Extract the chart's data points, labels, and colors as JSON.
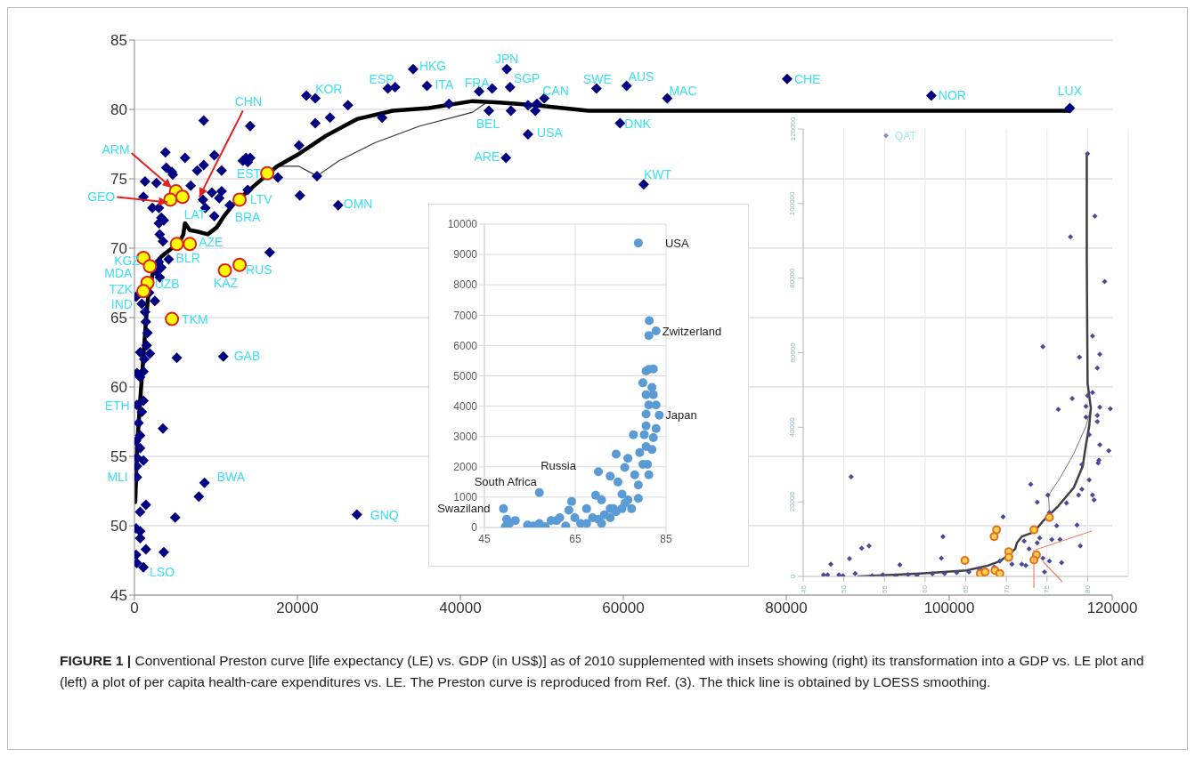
{
  "chart_data": [
    {
      "type": "scatter",
      "marker": "diamond",
      "xlim": [
        0,
        120000
      ],
      "ylim": [
        45,
        85
      ],
      "xticks": [
        0,
        20000,
        40000,
        60000,
        80000,
        100000,
        120000
      ],
      "yticks": [
        45,
        50,
        55,
        60,
        65,
        70,
        75,
        80,
        85
      ],
      "grid": "y",
      "series": [
        {
          "color": "#000080",
          "x": [
            34200,
            35900,
            42300,
            43900,
            45700,
            46100,
            50300,
            49400,
            43500,
            46200,
            38600,
            48300,
            49200,
            48300,
            45600,
            56700,
            60400,
            65400,
            59600,
            62500,
            80100,
            97800,
            114800,
            31100,
            32000,
            22200,
            21100,
            26200,
            24000,
            22200,
            30400,
            20200,
            22400,
            20300,
            25000,
            16600,
            8500,
            14200,
            13700,
            14200,
            13300,
            13900,
            17600,
            13900,
            11700,
            9800,
            10700,
            8500,
            7700,
            6200,
            3800,
            3900,
            4600,
            4700,
            1300,
            2700,
            6900,
            9500,
            10700,
            10400,
            8400,
            8700,
            9800,
            1100,
            2200,
            3000,
            3300,
            3600,
            3000,
            3100,
            3500,
            4200,
            3000,
            3300,
            2700,
            3100,
            200,
            2500,
            1300,
            1400,
            1600,
            1800,
            900,
            1500,
            1200,
            10900,
            5200,
            700,
            1900,
            300,
            1100,
            700,
            300,
            1100,
            900,
            500,
            3500,
            700,
            200,
            700,
            300,
            1100,
            300,
            300,
            8600,
            7900,
            1400,
            700,
            5000,
            27300,
            200,
            700,
            700,
            1400,
            3600,
            200,
            300,
            1100
          ],
          "values": [
            82.9,
            81.7,
            81.3,
            81.5,
            82.9,
            81.6,
            80.8,
            80.4,
            79.9,
            79.9,
            80.4,
            80.3,
            79.9,
            78.2,
            76.5,
            81.5,
            81.7,
            80.8,
            79.0,
            74.6,
            82.2,
            81.0,
            80.1,
            81.5,
            81.6,
            80.8,
            81.0,
            80.3,
            79.4,
            79.0,
            79.4,
            77.4,
            75.2,
            73.8,
            73.1,
            69.7,
            79.2,
            78.8,
            76.5,
            76.5,
            76.3,
            76.2,
            75.1,
            74.2,
            73.1,
            76.7,
            75.6,
            76.0,
            75.6,
            76.5,
            76.9,
            75.8,
            75.5,
            75.3,
            74.8,
            74.7,
            74.5,
            74.0,
            74.1,
            73.6,
            73.5,
            72.9,
            72.3,
            73.7,
            72.9,
            72.9,
            72.2,
            72.0,
            71.8,
            71.0,
            70.5,
            69.2,
            69.0,
            68.6,
            68.3,
            67.9,
            66.5,
            66.2,
            65.4,
            64.7,
            63.9,
            66.8,
            66.0,
            63.0,
            62.0,
            62.2,
            62.1,
            62.5,
            62.4,
            61.0,
            61.1,
            60.7,
            58.7,
            59.0,
            58.2,
            57.4,
            57.0,
            56.5,
            56.1,
            55.6,
            54.9,
            54.7,
            54.3,
            53.5,
            53.1,
            52.1,
            51.5,
            51.0,
            50.6,
            50.8,
            49.8,
            49.6,
            49.1,
            48.3,
            48.1,
            47.9,
            47.3,
            47.0
          ]
        },
        {
          "type": "line",
          "color": "#333333",
          "marker": "none",
          "x": [
            17500,
            20200,
            22400,
            25100,
            29500,
            35000,
            41500,
            43200
          ],
          "values": [
            75.9,
            75.9,
            75.2,
            76.3,
            77.6,
            78.8,
            79.8,
            80.5
          ]
        },
        {
          "type": "line",
          "color": "#000000",
          "marker": "none",
          "x": [
            100,
            330,
            770,
            1100,
            1400,
            1700,
            2400,
            3300,
            4400,
            5500,
            6000,
            6200,
            6800,
            7700,
            9000,
            10100,
            11100,
            12200,
            13700,
            15300,
            17500,
            20200,
            23500,
            27300,
            31700,
            36100,
            41500,
            44800,
            49200,
            55700,
            114800
          ],
          "values": [
            51.7,
            55.8,
            59.6,
            62.2,
            64.7,
            66.7,
            68.6,
            69.4,
            69.9,
            70.4,
            71.0,
            71.8,
            71.3,
            71.2,
            71.0,
            71.5,
            72.4,
            73.2,
            74.0,
            74.8,
            75.9,
            76.8,
            78.1,
            79.3,
            79.9,
            80.1,
            80.6,
            80.5,
            80.3,
            79.9,
            79.9
          ]
        },
        {
          "color": "#ffff00",
          "marker": "circle",
          "x": [
            5100,
            4400,
            5900,
            16300,
            12900,
            6800,
            5200,
            1100,
            1900,
            1600,
            1100,
            4600,
            11100,
            12900
          ],
          "values": [
            74.1,
            73.5,
            73.7,
            75.4,
            73.5,
            70.3,
            70.3,
            69.3,
            68.7,
            67.5,
            66.9,
            64.9,
            68.4,
            68.8
          ]
        }
      ],
      "annotations": [
        {
          "text": "CHN",
          "x": 8400,
          "y": 73.5
        },
        {
          "text": "ARM",
          "x": 5100,
          "y": 74.1
        },
        {
          "text": "GEO",
          "x": 4400,
          "y": 73.5
        },
        {
          "text": "EST",
          "x": 16300,
          "y": 75.4
        },
        {
          "text": "LTV",
          "x": 12900,
          "y": 73.5
        },
        {
          "text": "LAT",
          "x": 5900,
          "y": 73.7
        },
        {
          "text": "BRA",
          "x": 11700,
          "y": 73.1
        },
        {
          "text": "AZE",
          "x": 6800,
          "y": 70.3
        },
        {
          "text": "BLR",
          "x": 5200,
          "y": 70.3
        },
        {
          "text": "KGZ",
          "x": 1100,
          "y": 69.3
        },
        {
          "text": "MDA",
          "x": 1900,
          "y": 68.7
        },
        {
          "text": "UZB",
          "x": 1600,
          "y": 67.5
        },
        {
          "text": "TZK",
          "x": 1100,
          "y": 66.9
        },
        {
          "text": "IND",
          "x": 1300,
          "y": 65.4
        },
        {
          "text": "TKM",
          "x": 4600,
          "y": 64.9
        },
        {
          "text": "KAZ",
          "x": 11100,
          "y": 68.4
        },
        {
          "text": "RUS",
          "x": 12900,
          "y": 68.8
        },
        {
          "text": "OMN",
          "x": 25000,
          "y": 73.1
        },
        {
          "text": "KOR",
          "x": 22200,
          "y": 80.8
        },
        {
          "text": "ESP",
          "x": 31100,
          "y": 81.5
        },
        {
          "text": "HKG",
          "x": 34200,
          "y": 82.9
        },
        {
          "text": "ITA",
          "x": 35900,
          "y": 81.7
        },
        {
          "text": "FRA",
          "x": 43900,
          "y": 81.5
        },
        {
          "text": "JPN",
          "x": 45700,
          "y": 82.9
        },
        {
          "text": "SGP",
          "x": 46100,
          "y": 81.6
        },
        {
          "text": "CAN",
          "x": 50300,
          "y": 80.8
        },
        {
          "text": "BEL",
          "x": 43500,
          "y": 79.9
        },
        {
          "text": "USA",
          "x": 48300,
          "y": 78.2
        },
        {
          "text": "ARE",
          "x": 45600,
          "y": 76.5
        },
        {
          "text": "SWE",
          "x": 56700,
          "y": 81.5
        },
        {
          "text": "AUS",
          "x": 60400,
          "y": 81.7
        },
        {
          "text": "MAC",
          "x": 65400,
          "y": 80.8
        },
        {
          "text": "DNK",
          "x": 59600,
          "y": 79.0
        },
        {
          "text": "KWT",
          "x": 62500,
          "y": 74.6
        },
        {
          "text": "CHE",
          "x": 80100,
          "y": 82.2
        },
        {
          "text": "NOR",
          "x": 97800,
          "y": 81.0
        },
        {
          "text": "LUX",
          "x": 114800,
          "y": 80.1
        },
        {
          "text": "GAB",
          "x": 10900,
          "y": 62.2
        },
        {
          "text": "ETH",
          "x": 300,
          "y": 58.7
        },
        {
          "text": "MLI",
          "x": 300,
          "y": 53.5
        },
        {
          "text": "BWA",
          "x": 8600,
          "y": 53.1
        },
        {
          "text": "GNQ",
          "x": 27300,
          "y": 50.8
        },
        {
          "text": "LSO",
          "x": 1100,
          "y": 47.0
        },
        "FIGURE 1 |",
        "Conventional Preston curve [life expectancy (LE) vs. GDP (in US$)] as of 2010 supplemented with insets showing (right) its transformation into a GDP vs. LE plot and (left) a plot of per capita health-care expenditures vs. LE. The Preston curve is reproduced from Ref. (3). The thick line is obtained by LOESS smoothing."
      ]
    },
    {
      "type": "scatter",
      "marker": "circle",
      "xlim": [
        45,
        85
      ],
      "ylim": [
        0,
        10000
      ],
      "xticks": [
        45,
        65,
        85
      ],
      "yticks": [
        0,
        1000,
        2000,
        3000,
        4000,
        5000,
        6000,
        7000,
        8000,
        9000,
        10000
      ],
      "grid": true,
      "series": [
        {
          "color": "#5b9bd5",
          "x": [
            78.9,
            81.3,
            81.2,
            82.8,
            80.6,
            81.2,
            82.2,
            79.9,
            80.6,
            81.9,
            82.2,
            80.6,
            81.2,
            82.8,
            83.5,
            80.6,
            82.8,
            82.2,
            80.2,
            77.8,
            81.9,
            79.2,
            80.6,
            81.2,
            78.9,
            78.9,
            77.4,
            79.9,
            80.9,
            78.1,
            76.6,
            74.0,
            75.9,
            74.4,
            75.3,
            73.4,
            72.7,
            70.1,
            69.5,
            70.8,
            67.5,
            72.7,
            71.4,
            68.8,
            64.9,
            64.2,
            63.6,
            61.6,
            59.7,
            57.1,
            54.5,
            57.1,
            60.9,
            66.2,
            70.8,
            74.0,
            76.6,
            75.3,
            49.2,
            49.9,
            49.6,
            51.8,
            50.5,
            55.8,
            58.4,
            62.9,
            67.5,
            70.1,
            72.7,
            76.0
          ],
          "values": [
            9380,
            6820,
            6330,
            6480,
            5160,
            5210,
            5230,
            4770,
            4380,
            4620,
            4380,
            3740,
            4040,
            4040,
            3700,
            3350,
            3260,
            2960,
            3060,
            3060,
            2570,
            2470,
            2670,
            1740,
            1400,
            960,
            620,
            2080,
            2080,
            1740,
            2280,
            2420,
            1980,
            1500,
            1100,
            620,
            1690,
            1840,
            1060,
            910,
            620,
            320,
            420,
            320,
            320,
            860,
            570,
            320,
            230,
            130,
            80,
            1150,
            230,
            130,
            130,
            520,
            910,
            620,
            620,
            270,
            30,
            230,
            130,
            50,
            30,
            50,
            130,
            270,
            620,
            810
          ]
        }
      ],
      "annotations": [
        {
          "text": "USA",
          "x": 78.9,
          "y": 9380
        },
        {
          "text": "Zwitzerland",
          "x": 82.8,
          "y": 6480
        },
        {
          "text": "Japan",
          "x": 83.5,
          "y": 3700
        },
        {
          "text": "Russia",
          "x": 70.1,
          "y": 1840
        },
        {
          "text": "South Africa",
          "x": 57.1,
          "y": 1150
        },
        {
          "text": "Swaziland",
          "x": 49.2,
          "y": 620
        }
      ]
    },
    {
      "type": "scatter",
      "marker": "diamond",
      "xlim": [
        45,
        85
      ],
      "ylim": [
        0,
        120000
      ],
      "xticks": [
        45,
        50,
        55,
        60,
        65,
        70,
        75,
        80
      ],
      "yticks": [
        0,
        20000,
        40000,
        60000,
        80000,
        100000,
        120000
      ],
      "grid": "x",
      "series": [
        {
          "color": "#4b4b9b",
          "x": [
            80.0,
            80.9,
            77.9,
            82.1,
            80.6,
            74.5,
            79.0,
            81.5,
            81.2,
            78.1,
            80.0,
            80.6,
            76.4,
            79.8,
            81.5,
            82.8,
            79.8,
            81.2,
            81.2,
            80.2,
            81.5,
            82.6,
            81.4,
            81.3,
            79.3,
            80.2,
            79.3,
            78.9,
            80.6,
            80.8,
            73.0,
            73.8,
            75.1,
            77.4,
            50.9,
            69.6,
            75.3,
            76.2,
            78.7,
            79.1,
            62.2,
            53.1,
            52.2,
            50.7,
            48.4,
            62.0,
            56.9,
            74.1,
            73.8,
            75.6,
            76.6,
            72.2,
            72.8,
            71.9,
            72.4,
            74.5,
            76.8,
            75.3,
            70.7,
            69.2,
            68.5,
            67.0,
            66.6,
            74.7,
            47.5,
            48.0,
            49.4,
            49.9,
            51.4,
            53.5,
            54.8,
            56.4,
            57.9,
            59.0,
            60.9,
            62.4,
            63.9,
            65.4
          ],
          "values": [
            113400,
            96600,
            91100,
            79100,
            64500,
            61600,
            58800,
            59600,
            55900,
            47700,
            48500,
            49300,
            44800,
            45600,
            45400,
            45000,
            42700,
            43200,
            41500,
            38000,
            35300,
            33700,
            31200,
            30400,
            30000,
            25900,
            23400,
            21800,
            21800,
            20500,
            24700,
            19900,
            21800,
            19700,
            26700,
            16000,
            17100,
            13600,
            13800,
            8200,
            10700,
            8200,
            7600,
            4800,
            3300,
            4900,
            3100,
            10300,
            9000,
            9900,
            9900,
            9500,
            7400,
            3300,
            2900,
            4900,
            3700,
            4100,
            3300,
            4100,
            2500,
            1600,
            2100,
            1200,
            400,
            400,
            400,
            200,
            800,
            200,
            400,
            200,
            500,
            300,
            700,
            800,
            1000,
            1200
          ]
        },
        {
          "color": "#8c8cc8",
          "x": [
            55.2
          ],
          "values": [
            118200
          ]
        },
        {
          "type": "line",
          "color": "#666666",
          "marker": "none",
          "x": [
            75.3,
            75.2,
            76.5,
            78.3,
            79.8,
            80.4
          ],
          "values": [
            17100,
            21800,
            26000,
            32900,
            40300,
            45200
          ]
        },
        {
          "type": "line",
          "color": "#404040",
          "marker": "none",
          "x": [
            51.8,
            59.4,
            65.1,
            67.7,
            69.2,
            70.3,
            71.1,
            71.3,
            71.9,
            73.4,
            74.5,
            76.4,
            78.3,
            79.4,
            79.8,
            80.2,
            80.4,
            80.0,
            79.9,
            79.9
          ],
          "values": [
            0,
            800,
            1600,
            2900,
            4100,
            5800,
            7400,
            9000,
            10700,
            11900,
            14800,
            18900,
            23800,
            29600,
            35300,
            40300,
            45200,
            51800,
            84700,
            113400
          ]
        },
        {
          "color": "#ffd24a",
          "marker": "circle",
          "x": [
            64.9,
            66.8,
            67.4,
            68.5,
            68.8,
            68.6,
            69.2,
            70.3,
            70.3,
            73.4,
            73.7,
            73.4,
            75.3
          ],
          "values": [
            4300,
            800,
            1200,
            10700,
            12500,
            1600,
            800,
            6600,
            5100,
            12500,
            5800,
            4400,
            15800
          ]
        }
      ],
      "annotations": [
        {
          "text": "QAT",
          "x": 55.2,
          "y": 118200
        }
      ]
    }
  ]
}
